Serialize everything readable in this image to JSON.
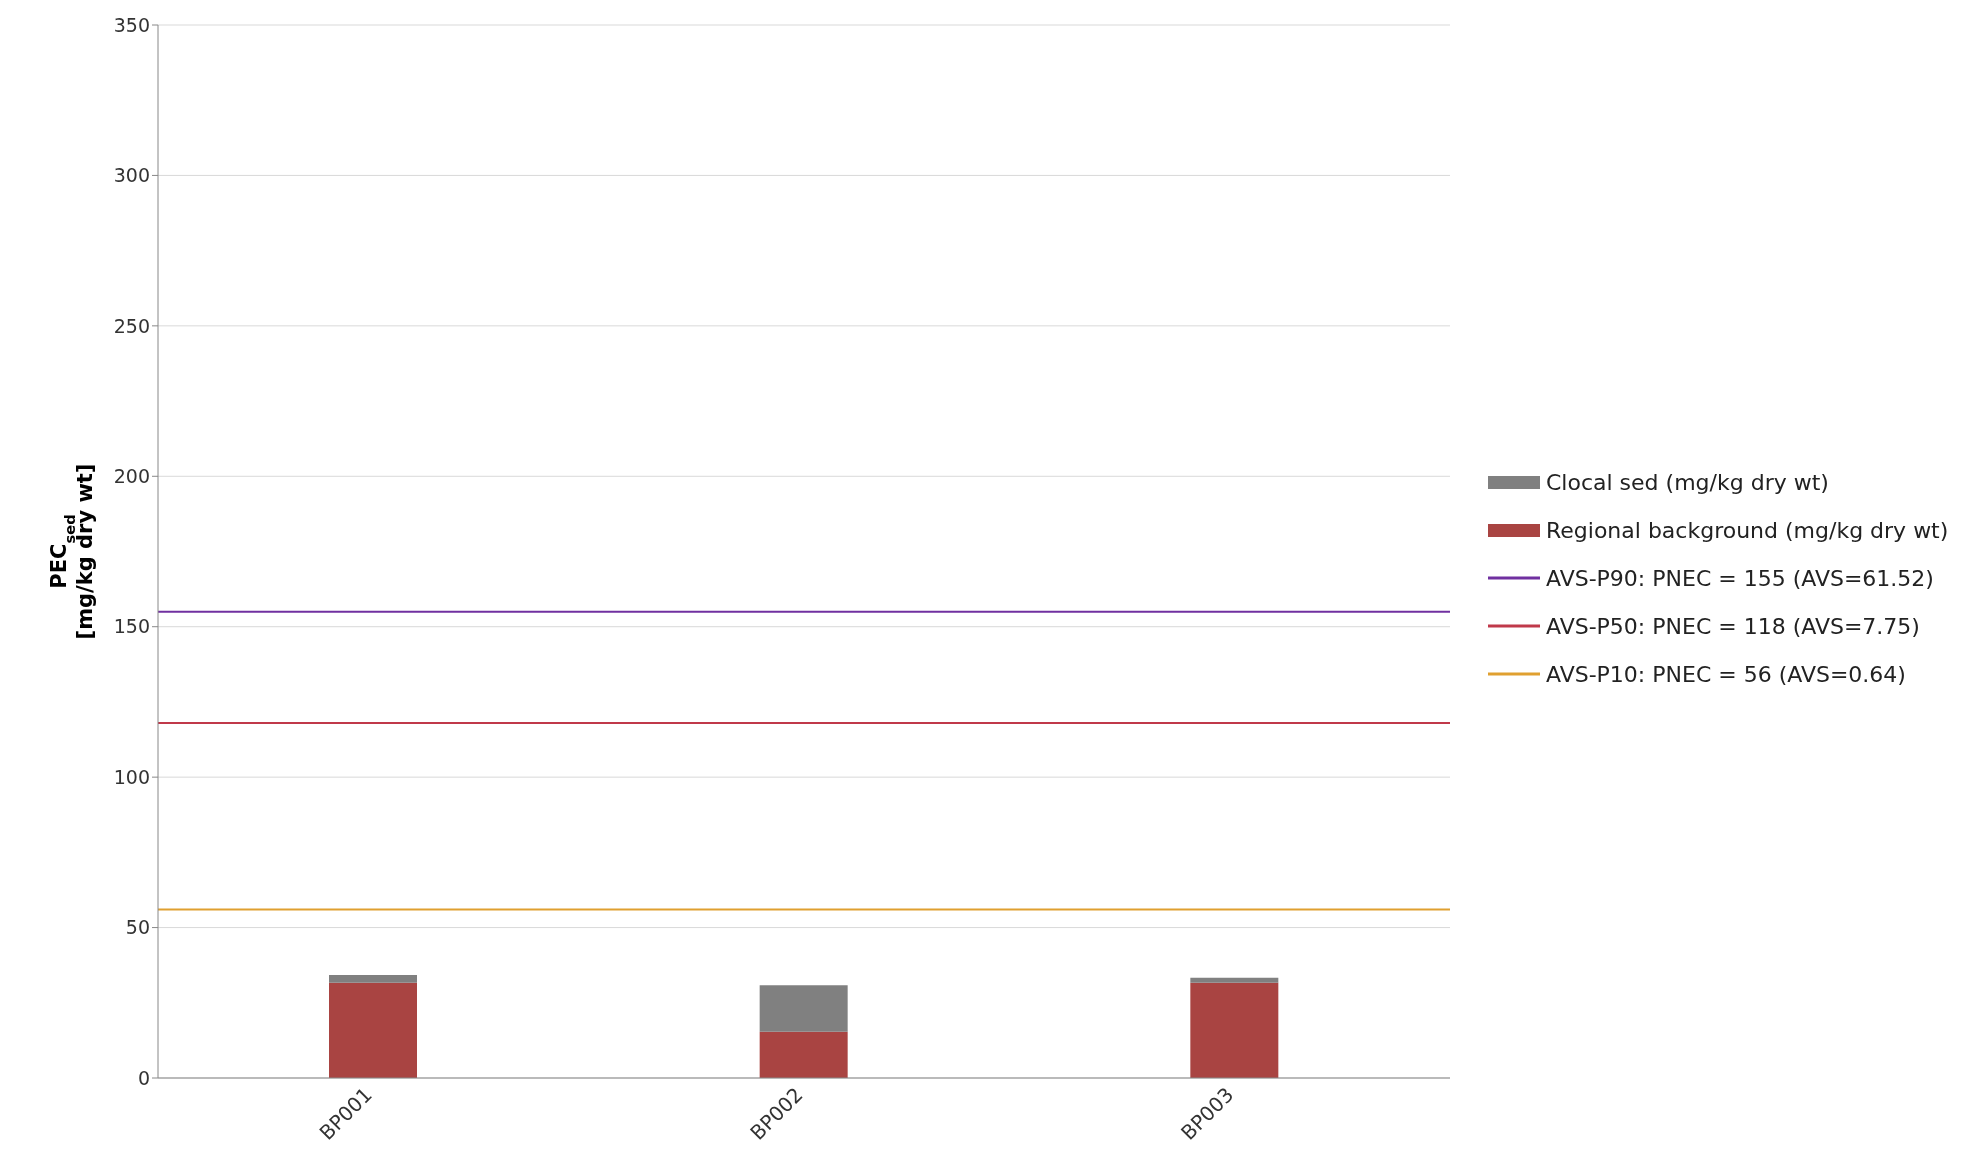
{
  "chart_data": {
    "type": "bar",
    "stacked": true,
    "categories": [
      "BP001",
      "BP002",
      "BP003"
    ],
    "series": [
      {
        "name": "Regional background (mg/kg dry wt)",
        "color": "#a94442",
        "values": [
          31.7,
          15.4,
          31.7
        ]
      },
      {
        "name": "Clocal sed (mg/kg dry wt)",
        "color": "#808080",
        "values": [
          2.5,
          15.4,
          1.6
        ]
      }
    ],
    "ylabel": "PEC$_{sed}$\n[mg/kg dry wt]",
    "ylim": [
      0,
      350
    ],
    "yticks": [
      0,
      50,
      100,
      150,
      200,
      250,
      300,
      350
    ],
    "grid": "y",
    "legend": "right",
    "ref_lines": [
      {
        "axis": "y",
        "value": 155,
        "label": "AVS-P90: PNEC = 155 (AVS=61.52)",
        "color": "#7030a0"
      },
      {
        "axis": "y",
        "value": 118,
        "label": "AVS-P50: PNEC = 118 (AVS=7.75)",
        "color": "#c0394a"
      },
      {
        "axis": "y",
        "value": 56,
        "label": "AVS-P10: PNEC = 56 (AVS=0.64)",
        "color": "#e0a030"
      }
    ]
  }
}
